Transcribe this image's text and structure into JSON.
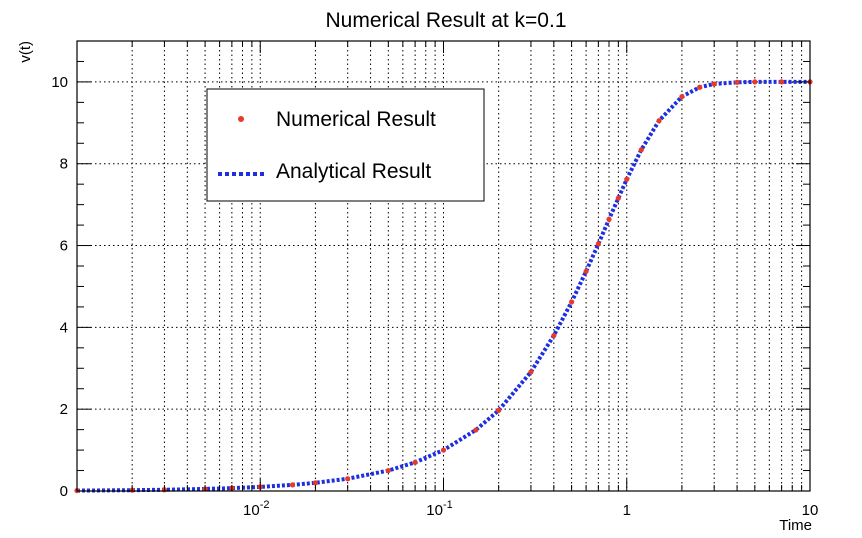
{
  "chart_data": {
    "type": "scatter",
    "title": "Numerical Result at k=0.1",
    "xlabel": "Time",
    "ylabel": "v(t)",
    "x_scale": "log",
    "xlim": [
      0.001,
      10
    ],
    "ylim": [
      0,
      11
    ],
    "grid": true,
    "legend_position": "top-left",
    "x_ticks": [
      {
        "value": 0.01,
        "label": "10",
        "exp": "-2"
      },
      {
        "value": 0.1,
        "label": "10",
        "exp": "-1"
      },
      {
        "value": 1,
        "label": "1",
        "exp": ""
      },
      {
        "value": 10,
        "label": "10",
        "exp": ""
      }
    ],
    "y_ticks": [
      0,
      2,
      4,
      6,
      8,
      10
    ],
    "series": [
      {
        "name": "Numerical Result",
        "style": "markers",
        "color": "#e8392b",
        "x": [
          0.001,
          0.002,
          0.003,
          0.005,
          0.007,
          0.01,
          0.015,
          0.02,
          0.03,
          0.05,
          0.07,
          0.1,
          0.15,
          0.2,
          0.3,
          0.4,
          0.5,
          0.6,
          0.7,
          0.8,
          0.9,
          1.0,
          1.2,
          1.5,
          2.0,
          2.5,
          3.0,
          4.0,
          5.0,
          7.0,
          10.0
        ],
        "y": [
          0.01,
          0.02,
          0.03,
          0.05,
          0.07,
          0.1,
          0.15,
          0.2,
          0.3,
          0.5,
          0.7,
          1.0,
          1.49,
          1.97,
          2.91,
          3.8,
          4.62,
          5.37,
          6.04,
          6.64,
          7.16,
          7.62,
          8.34,
          9.05,
          9.64,
          9.87,
          9.95,
          9.99,
          10.0,
          10.0,
          10.0
        ]
      },
      {
        "name": "Analytical Result",
        "style": "dotted-line",
        "color": "#1d2fe0",
        "x": [
          0.001,
          0.002,
          0.003,
          0.005,
          0.007,
          0.01,
          0.015,
          0.02,
          0.03,
          0.05,
          0.07,
          0.1,
          0.15,
          0.2,
          0.3,
          0.4,
          0.5,
          0.6,
          0.7,
          0.8,
          0.9,
          1.0,
          1.2,
          1.5,
          2.0,
          2.5,
          3.0,
          4.0,
          5.0,
          7.0,
          10.0
        ],
        "y": [
          0.01,
          0.02,
          0.03,
          0.05,
          0.07,
          0.1,
          0.15,
          0.2,
          0.3,
          0.5,
          0.7,
          1.0,
          1.49,
          1.97,
          2.91,
          3.8,
          4.62,
          5.37,
          6.04,
          6.64,
          7.16,
          7.62,
          8.34,
          9.05,
          9.64,
          9.87,
          9.95,
          9.99,
          10.0,
          10.0,
          10.0
        ]
      }
    ]
  }
}
